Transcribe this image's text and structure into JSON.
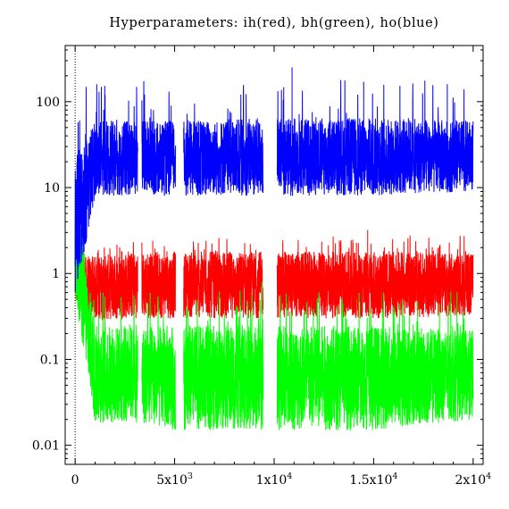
{
  "chart_data": {
    "type": "line",
    "title": "Hyperparameters: ih(red), bh(green), ho(blue)",
    "xlabel": "",
    "ylabel": "",
    "xlim": [
      -500,
      20500
    ],
    "ylim": [
      0.006,
      450
    ],
    "yscale": "log",
    "grid": false,
    "reference_line": {
      "x": 0,
      "style": "dotted"
    },
    "x_ticks": [
      {
        "value": 0,
        "label": "0",
        "mantissa": "0",
        "exponent": ""
      },
      {
        "value": 5000,
        "label": "5x10^3",
        "mantissa": "5x10",
        "exponent": "3"
      },
      {
        "value": 10000,
        "label": "1x10^4",
        "mantissa": "1x10",
        "exponent": "4"
      },
      {
        "value": 15000,
        "label": "1.5x10^4",
        "mantissa": "1.5x10",
        "exponent": "4"
      },
      {
        "value": 20000,
        "label": "2x10^4",
        "mantissa": "2x10",
        "exponent": "4"
      }
    ],
    "y_ticks": [
      {
        "value": 100,
        "label": "100"
      },
      {
        "value": 10,
        "label": "10"
      },
      {
        "value": 1,
        "label": "1"
      },
      {
        "value": 0.1,
        "label": "0.1"
      },
      {
        "value": 0.01,
        "label": "0.01"
      }
    ],
    "gaps": [
      [
        3150,
        3350
      ],
      [
        5050,
        5450
      ],
      [
        9450,
        10150
      ]
    ],
    "series": [
      {
        "color": "#ff0000",
        "x": [
          0,
          1000,
          3000,
          5000,
          10000,
          15000,
          20000
        ],
        "band_low": [
          0.4,
          0.28,
          0.3,
          0.3,
          0.3,
          0.3,
          0.32
        ],
        "band_high": [
          1.6,
          1.6,
          1.8,
          1.8,
          1.8,
          1.8,
          1.7
        ],
        "peak_max": 3.2
      },
      {
        "color": "#00ff00",
        "x": [
          0,
          1000,
          3000,
          5000,
          10000,
          15000,
          20000
        ],
        "band_low": [
          0.5,
          0.018,
          0.018,
          0.015,
          0.015,
          0.015,
          0.02
        ],
        "band_high": [
          10,
          0.25,
          0.25,
          0.25,
          0.25,
          0.25,
          0.22
        ],
        "peak_max": 0.8
      },
      {
        "color": "#0000ff",
        "x": [
          0,
          1000,
          3000,
          5000,
          10000,
          15000,
          20000
        ],
        "band_low": [
          0.45,
          8,
          8,
          8,
          8,
          8,
          9
        ],
        "band_high": [
          25,
          60,
          60,
          60,
          65,
          65,
          60
        ],
        "peak_max": 250
      }
    ]
  }
}
